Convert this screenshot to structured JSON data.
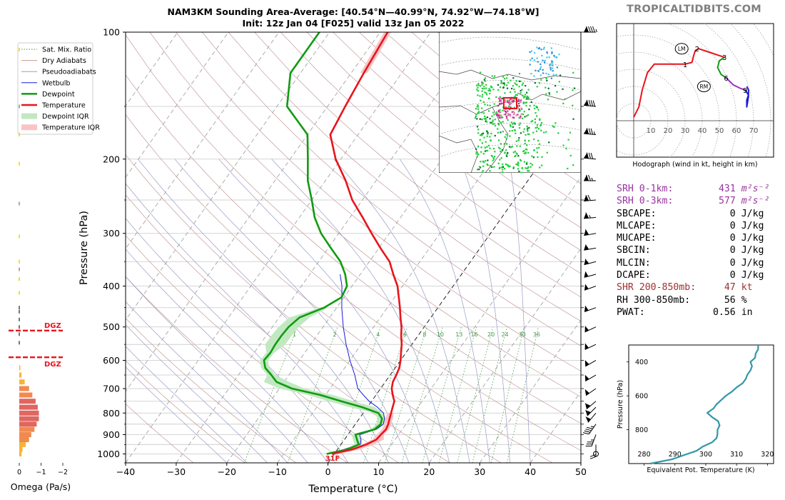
{
  "brand": "TROPICALTIDBITS.COM",
  "title_line1": "NAM3KM Sounding Area-Average: [40.54°N—40.99°N, 74.92°W—74.18°W]",
  "title_line2": "Init: 12z Jan 04 [F025] valid 13z Jan 05 2022",
  "colors": {
    "temperature": "#e8141c",
    "dewpoint": "#109b10",
    "wetbulb": "#1a1adc",
    "temp_iqr": "#f9c4c6",
    "dew_iqr": "#c2e8c2",
    "dry_adiabat": "#c49a9a",
    "moist_adiabat": "#9a9ac8",
    "mixing_ratio": "#4a9a4a",
    "theta_e": "#3297a8",
    "srh": "#9933a0",
    "shr": "#a03030"
  },
  "legend": [
    {
      "label": "Sat. Mix. Ratio",
      "style": "dotted-green"
    },
    {
      "label": "Dry Adiabats",
      "style": "thin-brown"
    },
    {
      "label": "Pseudoadiabats",
      "style": "thin-blue"
    },
    {
      "label": "Wetbulb",
      "style": "blue"
    },
    {
      "label": "Dewpoint",
      "style": "green-thick"
    },
    {
      "label": "Temperature",
      "style": "red-thick"
    },
    {
      "label": "Dewpoint IQR",
      "style": "green-patch"
    },
    {
      "label": "Temperature IQR",
      "style": "red-patch"
    }
  ],
  "chart_data": [
    {
      "type": "line",
      "name": "skewt",
      "xlabel": "Temperature (°C)",
      "ylabel": "Pressure (hPa)",
      "xlim": [
        -40,
        50
      ],
      "ylim": [
        1050,
        100
      ],
      "y_scale": "log",
      "x_ticks": [
        -40,
        -30,
        -20,
        -10,
        0,
        10,
        20,
        30,
        40,
        50
      ],
      "y_ticks": [
        100,
        200,
        300,
        400,
        500,
        600,
        700,
        800,
        900,
        1000
      ],
      "grid": true,
      "legend_position": "top-left",
      "freezing_label": "31F",
      "mixing_ratio_labels": [
        "1",
        "2",
        "4",
        "6",
        "8",
        "10",
        "13",
        "16",
        "20",
        "24",
        "30",
        "36"
      ],
      "series": [
        {
          "name": "Temperature",
          "points": [
            [
              1000,
              -0.5
            ],
            [
              975,
              3
            ],
            [
              950,
              5
            ],
            [
              925,
              6.3
            ],
            [
              900,
              6.5
            ],
            [
              875,
              6.8
            ],
            [
              850,
              6.5
            ],
            [
              825,
              6
            ],
            [
              800,
              5.5
            ],
            [
              775,
              5
            ],
            [
              750,
              4.5
            ],
            [
              725,
              3.3
            ],
            [
              700,
              2.2
            ],
            [
              675,
              1.5
            ],
            [
              650,
              1.2
            ],
            [
              625,
              0.8
            ],
            [
              600,
              0
            ],
            [
              575,
              -1
            ],
            [
              550,
              -2
            ],
            [
              525,
              -3.3
            ],
            [
              500,
              -4.5
            ],
            [
              475,
              -6
            ],
            [
              450,
              -7.5
            ],
            [
              425,
              -9.2
            ],
            [
              400,
              -11
            ],
            [
              375,
              -13.5
            ],
            [
              350,
              -16
            ],
            [
              325,
              -19.7
            ],
            [
              300,
              -23.5
            ],
            [
              275,
              -27.5
            ],
            [
              250,
              -32
            ],
            [
              225,
              -36
            ],
            [
              200,
              -41
            ],
            [
              175,
              -45.5
            ],
            [
              150,
              -46.5
            ],
            [
              125,
              -47.5
            ],
            [
              100,
              -48.5
            ]
          ]
        },
        {
          "name": "Dewpoint",
          "points": [
            [
              1000,
              -1.5
            ],
            [
              975,
              2
            ],
            [
              950,
              3.5
            ],
            [
              925,
              2.5
            ],
            [
              900,
              1.5
            ],
            [
              875,
              4.5
            ],
            [
              850,
              5
            ],
            [
              825,
              4.5
            ],
            [
              800,
              3
            ],
            [
              775,
              -1
            ],
            [
              750,
              -6
            ],
            [
              725,
              -11
            ],
            [
              700,
              -17.5
            ],
            [
              675,
              -21.5
            ],
            [
              650,
              -23.5
            ],
            [
              625,
              -25.7
            ],
            [
              600,
              -27
            ],
            [
              575,
              -26.8
            ],
            [
              550,
              -27
            ],
            [
              525,
              -27
            ],
            [
              500,
              -26.8
            ],
            [
              475,
              -26
            ],
            [
              450,
              -22.5
            ],
            [
              425,
              -20.5
            ],
            [
              400,
              -21
            ],
            [
              375,
              -23
            ],
            [
              350,
              -25.7
            ],
            [
              325,
              -29.5
            ],
            [
              300,
              -33.5
            ],
            [
              275,
              -37
            ],
            [
              250,
              -40
            ],
            [
              225,
              -43.5
            ],
            [
              200,
              -46.5
            ],
            [
              175,
              -50
            ],
            [
              150,
              -58
            ],
            [
              125,
              -62
            ],
            [
              100,
              -62
            ]
          ]
        },
        {
          "name": "Wetbulb",
          "points": [
            [
              1000,
              -1
            ],
            [
              950,
              3.8
            ],
            [
              925,
              3.3
            ],
            [
              900,
              2.3
            ],
            [
              875,
              4.8
            ],
            [
              850,
              5.5
            ],
            [
              825,
              5
            ],
            [
              800,
              4
            ],
            [
              775,
              2
            ],
            [
              750,
              -0.5
            ],
            [
              725,
              -2.5
            ],
            [
              700,
              -4.5
            ],
            [
              650,
              -7
            ],
            [
              600,
              -10
            ],
            [
              550,
              -13
            ],
            [
              500,
              -16
            ],
            [
              450,
              -19
            ],
            [
              400,
              -22
            ],
            [
              375,
              -24
            ]
          ]
        }
      ]
    },
    {
      "type": "bar",
      "name": "omega",
      "xlabel": "Omega (Pa/s)",
      "x_ticks": [
        "0",
        "−1",
        "−2"
      ],
      "xlim": [
        0,
        -2
      ],
      "dgz_label": "DGZ",
      "dgz_pressures": [
        510,
        590
      ],
      "bars": [
        {
          "p": 1000,
          "omega": -0.1
        },
        {
          "p": 975,
          "omega": -0.15
        },
        {
          "p": 950,
          "omega": -0.3
        },
        {
          "p": 925,
          "omega": -0.45
        },
        {
          "p": 900,
          "omega": -0.55
        },
        {
          "p": 875,
          "omega": -0.7
        },
        {
          "p": 850,
          "omega": -0.8
        },
        {
          "p": 825,
          "omega": -0.9
        },
        {
          "p": 800,
          "omega": -0.9
        },
        {
          "p": 775,
          "omega": -0.85
        },
        {
          "p": 750,
          "omega": -0.75
        },
        {
          "p": 725,
          "omega": -0.6
        },
        {
          "p": 700,
          "omega": -0.45
        },
        {
          "p": 675,
          "omega": -0.25
        },
        {
          "p": 650,
          "omega": -0.1
        },
        {
          "p": 625,
          "omega": -0.05
        }
      ]
    },
    {
      "type": "line",
      "name": "hodograph",
      "xlabel": "Hodograph (wind in kt, height in km)",
      "ring_labels": [
        "10",
        "20",
        "30",
        "40",
        "50",
        "60",
        "70"
      ],
      "height_labels": [
        {
          "label": "1",
          "u": 30,
          "v": 33
        },
        {
          "label": "2",
          "u": 37,
          "v": 42
        },
        {
          "label": "3",
          "u": 53,
          "v": 37
        },
        {
          "label": "6",
          "u": 54,
          "v": 25
        },
        {
          "label": "9",
          "u": 65,
          "v": 18
        }
      ],
      "motion_labels": [
        {
          "label": "LM",
          "u": 28,
          "v": 42
        },
        {
          "label": "RM",
          "u": 41,
          "v": 20
        }
      ],
      "series": [
        {
          "name": "0-3km",
          "color": "red",
          "points": [
            [
              0,
              2
            ],
            [
              3,
              8
            ],
            [
              5,
              18
            ],
            [
              8,
              28
            ],
            [
              12,
              33
            ],
            [
              20,
              33
            ],
            [
              30,
              33
            ],
            [
              34,
              34
            ],
            [
              35,
              38
            ],
            [
              36,
              41
            ],
            [
              38,
              42
            ],
            [
              44,
              40
            ],
            [
              50,
              38
            ],
            [
              53,
              37
            ]
          ]
        },
        {
          "name": "3-6km",
          "color": "green",
          "points": [
            [
              53,
              37
            ],
            [
              50,
              35
            ],
            [
              49,
              31
            ],
            [
              51,
              27
            ],
            [
              54,
              25
            ]
          ]
        },
        {
          "name": "6-9km",
          "color": "purple",
          "points": [
            [
              54,
              25
            ],
            [
              58,
              21
            ],
            [
              62,
              19
            ],
            [
              65,
              18
            ]
          ]
        },
        {
          "name": "9-12km",
          "color": "blue",
          "points": [
            [
              65,
              18
            ],
            [
              67,
              15
            ],
            [
              66,
              12
            ],
            [
              66,
              10
            ],
            [
              66,
              8
            ],
            [
              67,
              14
            ],
            [
              67,
              18
            ],
            [
              66,
              20
            ]
          ]
        }
      ]
    },
    {
      "type": "line",
      "name": "theta_e",
      "xlabel": "Equivalent Pot. Temperature (K)",
      "ylabel": "Pressure (hPa)",
      "xlim": [
        275,
        322
      ],
      "ylim": [
        1000,
        300
      ],
      "x_ticks": [
        280,
        290,
        300,
        310,
        320
      ],
      "y_ticks": [
        400,
        600,
        800
      ],
      "points": [
        [
          1000,
          282
        ],
        [
          975,
          289
        ],
        [
          950,
          293
        ],
        [
          925,
          297
        ],
        [
          900,
          299
        ],
        [
          875,
          302
        ],
        [
          850,
          303.5
        ],
        [
          825,
          303.8
        ],
        [
          800,
          303.8
        ],
        [
          775,
          304.5
        ],
        [
          750,
          304
        ],
        [
          725,
          302
        ],
        [
          700,
          300.5
        ],
        [
          675,
          302.5
        ],
        [
          650,
          303.5
        ],
        [
          625,
          305
        ],
        [
          600,
          306.5
        ],
        [
          575,
          308.5
        ],
        [
          550,
          310
        ],
        [
          525,
          312
        ],
        [
          500,
          313
        ],
        [
          475,
          313.5
        ],
        [
          450,
          314.5
        ],
        [
          425,
          315
        ],
        [
          400,
          314.5
        ],
        [
          375,
          316
        ],
        [
          350,
          316.2
        ],
        [
          325,
          317
        ],
        [
          300,
          317
        ]
      ]
    }
  ],
  "stats": [
    {
      "label": "SRH 0-1km:",
      "value": "431",
      "unit": "m²s⁻²",
      "tone": "srh"
    },
    {
      "label": "SRH 0-3km:",
      "value": "577",
      "unit": "m²s⁻²",
      "tone": "srh"
    },
    {
      "label": "SBCAPE:",
      "value": "0",
      "unit": "J/kg",
      "tone": "normal"
    },
    {
      "label": "MLCAPE:",
      "value": "0",
      "unit": "J/kg",
      "tone": "normal"
    },
    {
      "label": "MUCAPE:",
      "value": "0",
      "unit": "J/kg",
      "tone": "normal"
    },
    {
      "label": "SBCIN:",
      "value": "0",
      "unit": "J/kg",
      "tone": "normal"
    },
    {
      "label": "MLCIN:",
      "value": "0",
      "unit": "J/kg",
      "tone": "normal"
    },
    {
      "label": "DCAPE:",
      "value": "0",
      "unit": "J/kg",
      "tone": "normal"
    },
    {
      "label": "SHR 200-850mb:",
      "value": "47",
      "unit": "kt",
      "tone": "shr"
    },
    {
      "label": "RH 300-850mb:",
      "value": "56",
      "unit": "%",
      "tone": "normal"
    },
    {
      "label": "PWAT:",
      "value": "0.56",
      "unit": "in",
      "tone": "normal"
    }
  ],
  "winds": [
    {
      "p": 100,
      "speed": 95,
      "dir": 270
    },
    {
      "p": 150,
      "speed": 90,
      "dir": 275
    },
    {
      "p": 175,
      "speed": 85,
      "dir": 275
    },
    {
      "p": 200,
      "speed": 80,
      "dir": 275
    },
    {
      "p": 225,
      "speed": 75,
      "dir": 270
    },
    {
      "p": 250,
      "speed": 70,
      "dir": 265
    },
    {
      "p": 275,
      "speed": 65,
      "dir": 265
    },
    {
      "p": 300,
      "speed": 60,
      "dir": 260
    },
    {
      "p": 325,
      "speed": 55,
      "dir": 260
    },
    {
      "p": 350,
      "speed": 55,
      "dir": 255
    },
    {
      "p": 375,
      "speed": 50,
      "dir": 255
    },
    {
      "p": 400,
      "speed": 50,
      "dir": 250
    },
    {
      "p": 450,
      "speed": 50,
      "dir": 250
    },
    {
      "p": 500,
      "speed": 50,
      "dir": 245
    },
    {
      "p": 550,
      "speed": 50,
      "dir": 245
    },
    {
      "p": 600,
      "speed": 50,
      "dir": 240
    },
    {
      "p": 650,
      "speed": 50,
      "dir": 240
    },
    {
      "p": 700,
      "speed": 50,
      "dir": 235
    },
    {
      "p": 750,
      "speed": 55,
      "dir": 230
    },
    {
      "p": 775,
      "speed": 55,
      "dir": 225
    },
    {
      "p": 800,
      "speed": 50,
      "dir": 220
    },
    {
      "p": 850,
      "speed": 45,
      "dir": 215
    },
    {
      "p": 900,
      "speed": 35,
      "dir": 200
    },
    {
      "p": 950,
      "speed": 20,
      "dir": 180
    },
    {
      "p": 1000,
      "speed": 0,
      "dir": 0
    }
  ]
}
